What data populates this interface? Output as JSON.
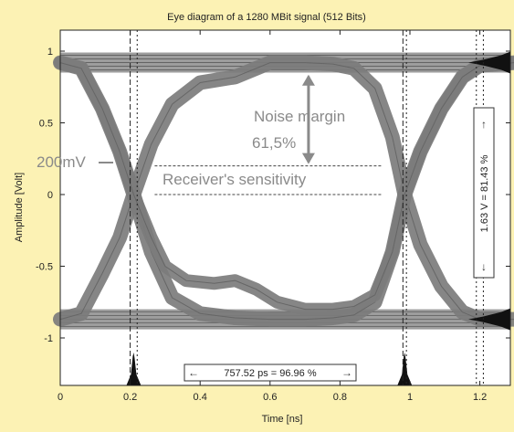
{
  "chart_data": {
    "type": "line",
    "title": "Eye diagram of a 1280 MBit signal (512 Bits)",
    "xlabel": "Time [ns]",
    "ylabel": "Amplitude [Volt]",
    "xlim": [
      0,
      1.3
    ],
    "ylim": [
      -1.1,
      1.1
    ],
    "x_ticks": [
      0,
      0.2,
      0.4,
      0.6,
      0.8,
      1,
      1.2
    ],
    "x_tick_labels": [
      "0",
      "0.2",
      "0.4",
      "0.6",
      "0.8",
      "1",
      "1.2"
    ],
    "y_ticks": [
      1,
      0.5,
      0,
      -0.5,
      -1
    ],
    "y_tick_labels": [
      "1",
      "0.5",
      "0",
      "-0.5",
      "-1"
    ],
    "grid": false,
    "levels": {
      "high": 0.92,
      "low": -0.87
    },
    "crossings_ns": [
      0.21,
      0.985
    ],
    "series": [
      {
        "x": [
          0,
          0.06,
          0.12,
          0.17,
          0.21,
          0.26,
          0.32,
          0.4,
          0.5,
          0.6,
          0.7,
          0.78,
          0.84,
          0.9,
          0.95,
          0.985,
          1.03,
          1.09,
          1.15,
          1.2,
          1.3
        ],
        "y": [
          0.92,
          0.88,
          0.6,
          0.3,
          0.0,
          -0.4,
          -0.72,
          -0.83,
          -0.86,
          -0.87,
          -0.87,
          -0.86,
          -0.84,
          -0.75,
          -0.4,
          0.0,
          0.3,
          0.6,
          0.82,
          0.9,
          0.92
        ]
      },
      {
        "x": [
          0,
          0.06,
          0.12,
          0.17,
          0.21,
          0.26,
          0.32,
          0.4,
          0.5,
          0.6,
          0.7,
          0.78,
          0.84,
          0.9,
          0.95,
          0.985,
          1.03,
          1.09,
          1.15,
          1.2,
          1.3
        ],
        "y": [
          -0.87,
          -0.83,
          -0.55,
          -0.3,
          0.0,
          0.35,
          0.63,
          0.78,
          0.82,
          0.92,
          0.92,
          0.91,
          0.88,
          0.74,
          0.4,
          0.0,
          -0.35,
          -0.64,
          -0.82,
          -0.87,
          -0.87
        ]
      },
      {
        "x": [
          0,
          0.06,
          0.12,
          0.17,
          0.21,
          0.26,
          0.3,
          0.36,
          0.44,
          0.5,
          0.56,
          0.62,
          0.7,
          0.78,
          0.84,
          0.9,
          0.95,
          0.985,
          1.03,
          1.09,
          1.15,
          1.2,
          1.3
        ],
        "y": [
          0.92,
          0.88,
          0.6,
          0.3,
          0.0,
          -0.3,
          -0.5,
          -0.6,
          -0.62,
          -0.6,
          -0.66,
          -0.75,
          -0.8,
          -0.8,
          -0.78,
          -0.7,
          -0.4,
          0.0,
          0.3,
          0.6,
          0.82,
          0.9,
          0.92
        ]
      }
    ],
    "markers": {
      "v_dashed": [
        0.2,
        0.98
      ],
      "v_dotted": [
        0.22,
        0.99,
        1.19,
        1.21
      ],
      "sensitivity_y": 0.2,
      "sensitivity_x": [
        0.27,
        0.92
      ],
      "arrow_x": 0.71,
      "arrow_y": [
        0.9,
        0.2
      ]
    },
    "annotations": {
      "noise_margin": "Noise margin",
      "noise_percent": "61,5%",
      "level_200mv": "200mV",
      "sensitivity": "Receiver's sensitivity",
      "eye_opening_v": "1.63 V = 81.43 %",
      "eye_width": "757.52 ps = 96.96 %"
    }
  }
}
